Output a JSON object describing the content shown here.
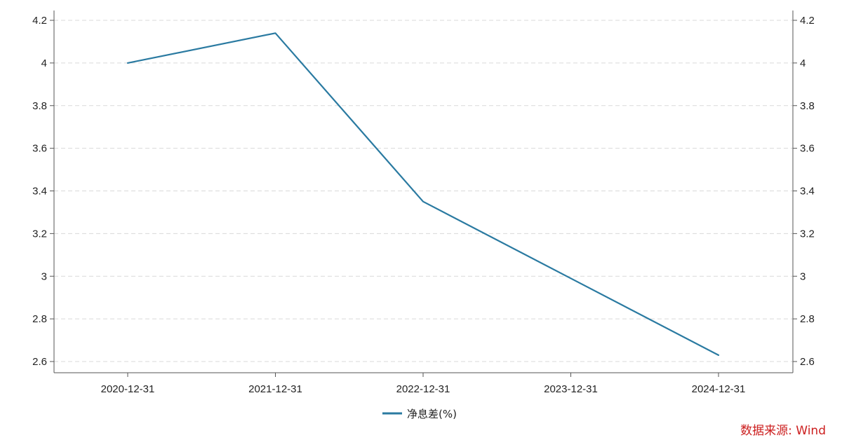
{
  "chart_data": {
    "type": "line",
    "x": [
      "2020-12-31",
      "2021-12-31",
      "2022-12-31",
      "2023-12-31",
      "2024-12-31"
    ],
    "series": [
      {
        "name": "净息差(%)",
        "values": [
          4.0,
          4.14,
          3.35,
          2.99,
          2.63
        ],
        "color": "#2a7aa1"
      }
    ],
    "ylim": [
      2.55,
      4.2
    ],
    "yticks": [
      2.6,
      2.8,
      3,
      3.2,
      3.4,
      3.6,
      3.8,
      4,
      4.2
    ],
    "ytick_labels": [
      "2.6",
      "2.8",
      "3",
      "3.2",
      "3.4",
      "3.6",
      "3.8",
      "4",
      "4.2"
    ],
    "right_axis_mirror": true,
    "grid": true,
    "legend_position": "bottom-center"
  },
  "source": "数据来源: Wind"
}
